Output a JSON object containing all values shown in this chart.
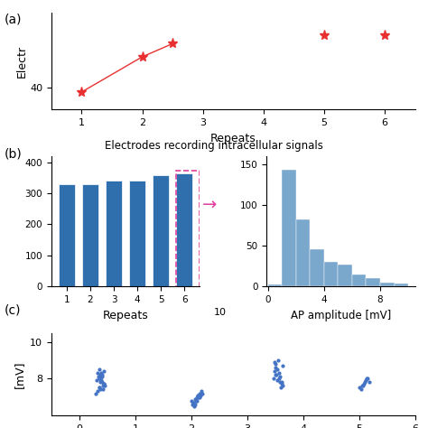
{
  "panel_a": {
    "scatter_x": [
      1,
      2,
      2.5,
      5,
      6
    ],
    "scatter_y": [
      39,
      47,
      50,
      52,
      52
    ],
    "line_x": [
      1,
      2,
      2.5
    ],
    "line_y": [
      39,
      47,
      50
    ],
    "color": "#e83030",
    "xlabel": "Repeats",
    "ylabel": "Electr",
    "xlim": [
      0.5,
      6.5
    ],
    "ylim": [
      35,
      57
    ],
    "yticks": [
      40
    ],
    "xticks": [
      1,
      2,
      3,
      4,
      5,
      6
    ]
  },
  "panel_b_title": "Electrodes recording intracellular signals",
  "panel_b_bar": {
    "categories": [
      1,
      2,
      3,
      4,
      5,
      6
    ],
    "values": [
      330,
      330,
      342,
      340,
      357,
      363
    ],
    "color": "#2f6fad",
    "xlabel": "Repeats",
    "ylabel": "",
    "ylim": [
      0,
      420
    ],
    "yticks": [
      0,
      100,
      200,
      300,
      400
    ]
  },
  "panel_b_hist": {
    "bin_edges": [
      0,
      1,
      2,
      3,
      4,
      5,
      6,
      7,
      8,
      9,
      10
    ],
    "heights": [
      3,
      143,
      82,
      46,
      30,
      27,
      15,
      10,
      5,
      4
    ],
    "color": "#7aa7cc",
    "xlabel": "AP amplitude [mV]",
    "ylabel": "",
    "ylim": [
      0,
      160
    ],
    "yticks": [
      0,
      50,
      100,
      150
    ],
    "xticks": [
      0,
      4,
      8
    ]
  },
  "panel_c": {
    "scatter_x": [
      0.3,
      0.35,
      0.4,
      0.38,
      0.42,
      0.36,
      0.37,
      0.39,
      0.33,
      0.41,
      0.44,
      0.35,
      0.43,
      0.37,
      0.32,
      0.46,
      0.38,
      0.4,
      0.34,
      0.42,
      0.31,
      0.39,
      0.35,
      0.43,
      0.36,
      0.44,
      2.0,
      2.1,
      2.05,
      2.15,
      2.08,
      2.12,
      2.03,
      2.18,
      2.07,
      2.14,
      2.09,
      2.11,
      2.06,
      2.16,
      2.04,
      2.13,
      2.1,
      2.17,
      2.02,
      2.19,
      3.5,
      3.55,
      3.6,
      3.52,
      3.58,
      3.53,
      3.57,
      3.54,
      3.56,
      3.51,
      3.59,
      3.62,
      3.48,
      3.64,
      3.49,
      3.63,
      3.5,
      3.61,
      3.47,
      5.0,
      5.1,
      5.05,
      5.15,
      5.08,
      5.12,
      5.03,
      5.18,
      5.07,
      5.14
    ],
    "scatter_y": [
      7.2,
      8.5,
      7.8,
      8.2,
      7.6,
      8.0,
      7.4,
      7.9,
      8.3,
      8.1,
      7.7,
      7.5,
      8.4,
      8.0,
      7.3,
      7.6,
      7.8,
      8.2,
      8.1,
      7.4,
      7.9,
      8.3,
      7.5,
      7.7,
      8.0,
      7.6,
      6.8,
      7.0,
      6.5,
      7.2,
      6.9,
      7.1,
      6.7,
      7.3,
      6.6,
      7.0,
      6.8,
      7.1,
      6.9,
      7.2,
      6.7,
      7.0,
      6.8,
      7.1,
      6.6,
      7.2,
      8.8,
      9.0,
      7.5,
      8.2,
      7.8,
      8.5,
      8.0,
      7.9,
      8.3,
      8.6,
      8.1,
      7.7,
      8.4,
      7.6,
      8.9,
      8.7,
      8.2,
      7.8,
      8.0,
      7.5,
      7.8,
      7.6,
      8.0,
      7.7,
      7.9,
      7.4,
      7.8,
      7.6,
      8.0
    ],
    "color": "#4472c4",
    "ylabel": "[mV]",
    "ylim": [
      6,
      10.5
    ],
    "yticks": [
      8,
      10
    ],
    "marker_size": 4
  },
  "label_color": "#000000",
  "background": "#ffffff"
}
